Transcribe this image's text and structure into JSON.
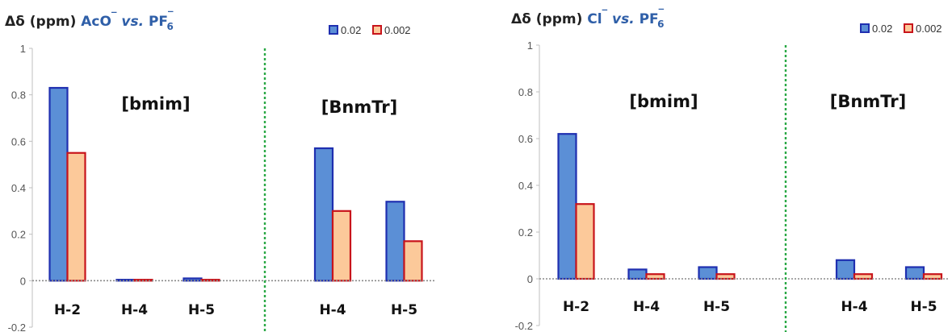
{
  "chart_data": [
    {
      "type": "bar",
      "title": {
        "prefix": "Δδ (ppm)",
        "anion": "AcO",
        "anion_sup": "‾",
        "vs": "vs.",
        "counter": "PF",
        "counter_sub": "6",
        "counter_sup": "‾"
      },
      "ylim": [
        -0.2,
        1
      ],
      "yticks": [
        "-0.2",
        "0",
        "0.2",
        "0.4",
        "0.6",
        "0.8",
        "1"
      ],
      "ytick_values": [
        -0.2,
        0,
        0.2,
        0.4,
        0.6,
        0.8,
        1
      ],
      "grid": false,
      "legend_position": "top-right",
      "series": [
        {
          "name": "0.02",
          "fill": "#5b8fd6",
          "stroke": "#1f2fb0",
          "values": [
            0.83,
            0.0,
            0.01,
            null,
            0.57,
            0.34
          ]
        },
        {
          "name": "0.002",
          "fill": "#fcc99a",
          "stroke": "#c8141b",
          "values": [
            0.55,
            0.0,
            0.0,
            null,
            0.3,
            0.17
          ]
        }
      ],
      "categories": [
        "H-2",
        "H-4",
        "H-5",
        "",
        "H-4",
        "H-5"
      ],
      "groups": [
        {
          "label": "[bmim]"
        },
        {
          "label": "[BnmTr]"
        }
      ],
      "divider_color": "#2aa845"
    },
    {
      "type": "bar",
      "title": {
        "prefix": "Δδ (ppm)",
        "anion": "Cl",
        "anion_sup": "‾",
        "vs": "vs.",
        "counter": "PF",
        "counter_sub": "6",
        "counter_sup": "‾"
      },
      "ylim": [
        -0.2,
        1
      ],
      "yticks": [
        "-0.2",
        "0",
        "0.2",
        "0.4",
        "0.6",
        "0.8",
        "1"
      ],
      "ytick_values": [
        -0.2,
        0,
        0.2,
        0.4,
        0.6,
        0.8,
        1
      ],
      "grid": false,
      "legend_position": "top-right",
      "series": [
        {
          "name": "0.02",
          "fill": "#5b8fd6",
          "stroke": "#1f2fb0",
          "values": [
            0.62,
            0.04,
            0.05,
            null,
            0.08,
            0.05
          ]
        },
        {
          "name": "0.002",
          "fill": "#fcc99a",
          "stroke": "#c8141b",
          "values": [
            0.32,
            0.02,
            0.02,
            null,
            0.02,
            0.02
          ]
        }
      ],
      "categories": [
        "H-2",
        "H-4",
        "H-5",
        "",
        "H-4",
        "H-5"
      ],
      "groups": [
        {
          "label": "[bmim]"
        },
        {
          "label": "[BnmTr]"
        }
      ],
      "divider_color": "#2aa845"
    }
  ],
  "colors": {
    "title_text": "#222222",
    "anion_text": "#2f5fa8",
    "axis": "#bfbfbf",
    "tick_text": "#555555",
    "zero_line": "#8a8a8a"
  }
}
